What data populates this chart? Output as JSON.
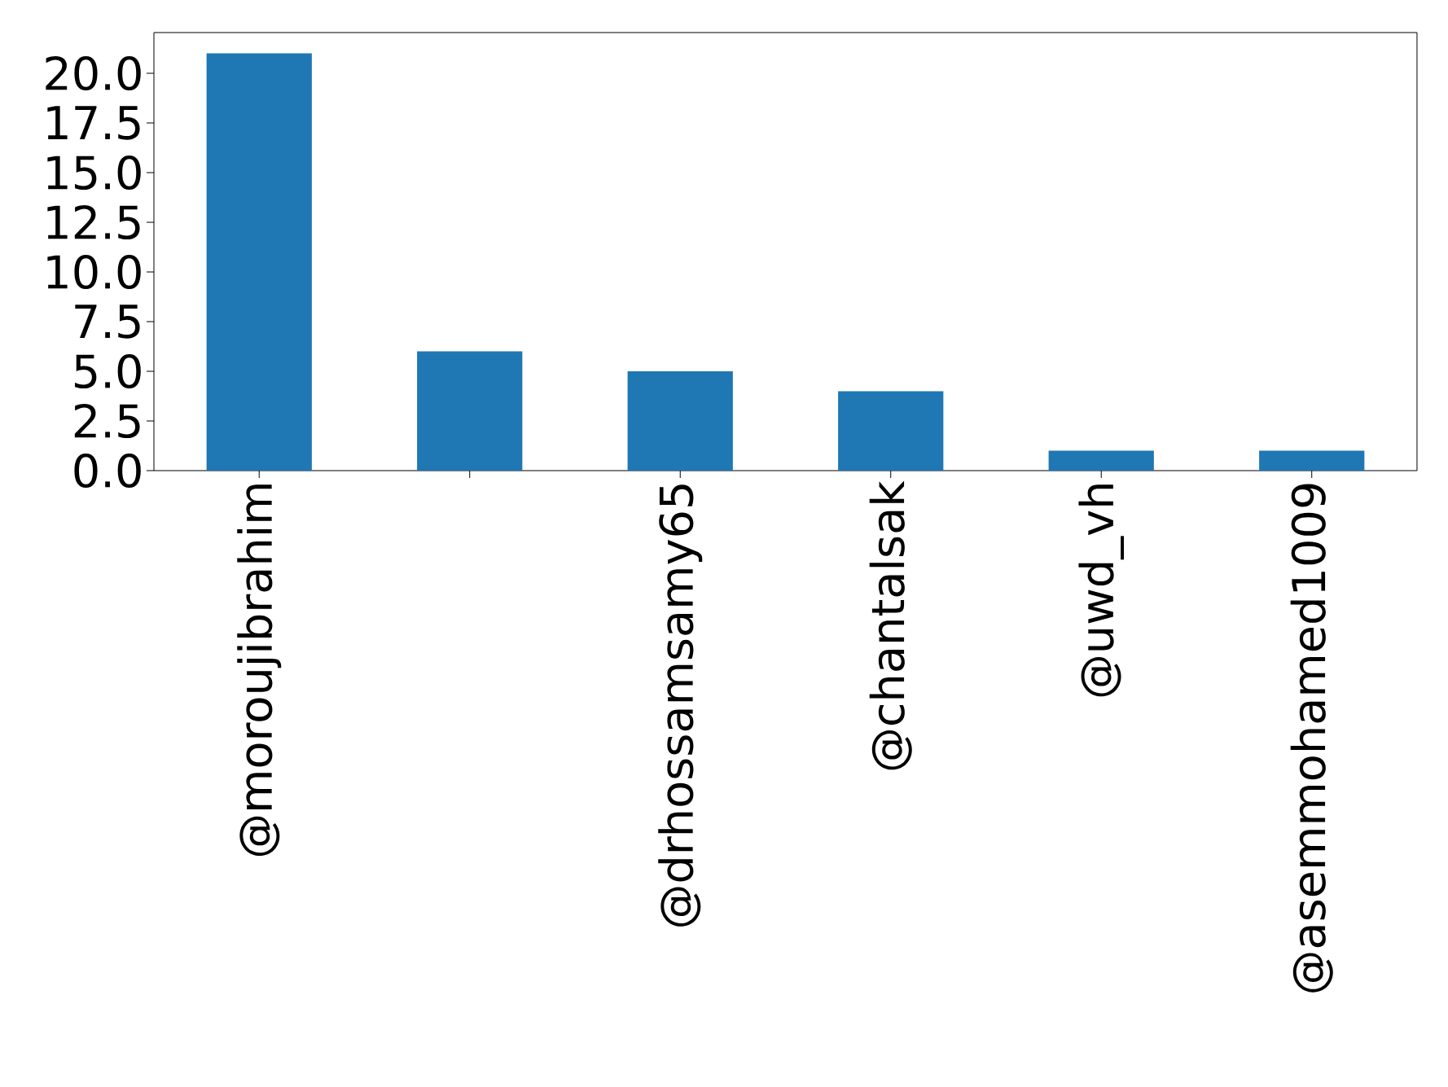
{
  "chart_data": {
    "type": "bar",
    "categories": [
      "@moroujibrahim",
      null,
      "@drhossamsamy65",
      "@chantalsak",
      "@uwd_vh",
      "@asemmohamed1009"
    ],
    "values": [
      21,
      6,
      5,
      4,
      1,
      1
    ],
    "color": "#1f77b4",
    "ylim": [
      0,
      22.05
    ],
    "yticks": [
      {
        "value": 0,
        "label": "0.0"
      },
      {
        "value": 2.5,
        "label": "2.5"
      },
      {
        "value": 5,
        "label": "5.0"
      },
      {
        "value": 7.5,
        "label": "7.5"
      },
      {
        "value": 10,
        "label": "10.0"
      },
      {
        "value": 12.5,
        "label": "12.5"
      },
      {
        "value": 15,
        "label": "15.0"
      },
      {
        "value": 17.5,
        "label": "17.5"
      },
      {
        "value": 20,
        "label": "20.0"
      }
    ],
    "grid": false
  }
}
